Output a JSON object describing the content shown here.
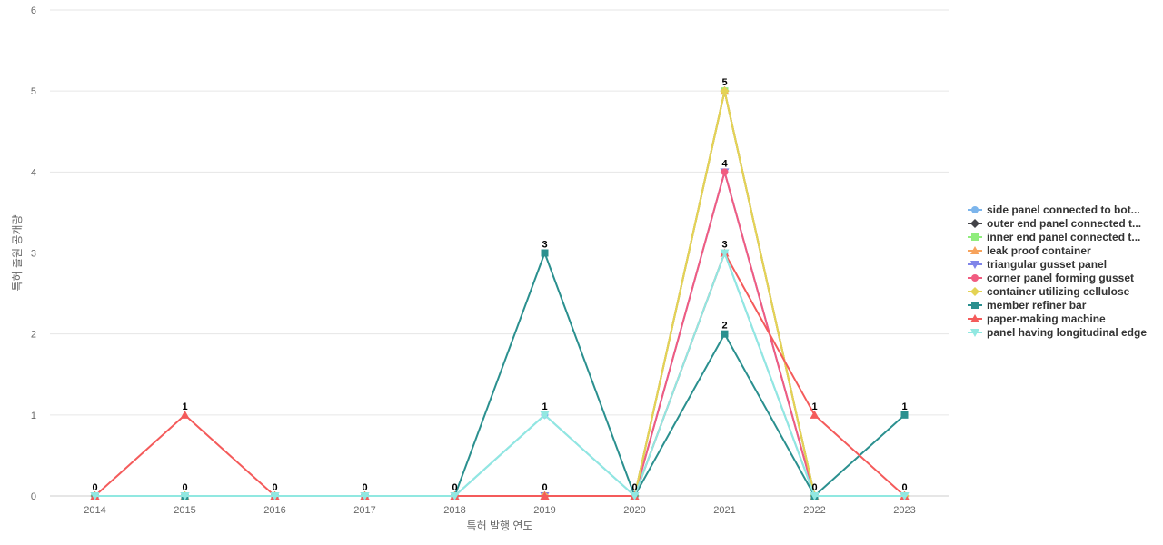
{
  "chart_data": {
    "type": "line",
    "title": "",
    "xlabel": "특허 발행 연도",
    "ylabel": "특허 출원 공개량",
    "ylim": [
      0,
      6
    ],
    "yticks": [
      0,
      1,
      2,
      3,
      4,
      5,
      6
    ],
    "grid": true,
    "legend_position": "right",
    "categories": [
      "2014",
      "2015",
      "2016",
      "2017",
      "2018",
      "2019",
      "2020",
      "2021",
      "2022",
      "2023"
    ],
    "series": [
      {
        "name": "side panel connected to bot...",
        "color": "#7cb5ec",
        "marker": "circle",
        "values": [
          0,
          0,
          0,
          0,
          0,
          1,
          0,
          3,
          0,
          0
        ]
      },
      {
        "name": "outer end panel connected t...",
        "color": "#434348",
        "marker": "diamond",
        "values": [
          0,
          0,
          0,
          0,
          0,
          0,
          0,
          5,
          0,
          0
        ]
      },
      {
        "name": "inner end panel connected t...",
        "color": "#90ed7d",
        "marker": "square",
        "values": [
          0,
          0,
          0,
          0,
          0,
          0,
          0,
          5,
          0,
          0
        ]
      },
      {
        "name": "leak proof container",
        "color": "#f7a35c",
        "marker": "triangle",
        "values": [
          0,
          0,
          0,
          0,
          0,
          0,
          0,
          5,
          0,
          0
        ]
      },
      {
        "name": "triangular gusset panel",
        "color": "#8085e9",
        "marker": "triangle-down",
        "values": [
          0,
          0,
          0,
          0,
          0,
          0,
          0,
          4,
          0,
          0
        ]
      },
      {
        "name": "corner panel forming gusset",
        "color": "#f15c80",
        "marker": "circle",
        "values": [
          0,
          0,
          0,
          0,
          0,
          0,
          0,
          4,
          0,
          0
        ]
      },
      {
        "name": "container utilizing cellulose",
        "color": "#e4d354",
        "marker": "diamond",
        "values": [
          0,
          0,
          0,
          0,
          0,
          0,
          0,
          5,
          0,
          0
        ]
      },
      {
        "name": "member refiner bar",
        "color": "#2b908f",
        "marker": "square",
        "values": [
          0,
          0,
          0,
          0,
          0,
          3,
          0,
          2,
          0,
          1
        ]
      },
      {
        "name": "paper-making machine",
        "color": "#f45b5b",
        "marker": "triangle",
        "values": [
          0,
          1,
          0,
          0,
          0,
          0,
          0,
          3,
          1,
          0
        ]
      },
      {
        "name": "panel having longitudinal edge",
        "color": "#91e8e1",
        "marker": "triangle-down",
        "values": [
          0,
          0,
          0,
          0,
          0,
          1,
          0,
          3,
          0,
          0
        ]
      }
    ],
    "data_labels": [
      {
        "x": "2014",
        "value": 0
      },
      {
        "x": "2015",
        "value": 1
      },
      {
        "x": "2015",
        "value": 0
      },
      {
        "x": "2016",
        "value": 0
      },
      {
        "x": "2017",
        "value": 0
      },
      {
        "x": "2018",
        "value": 0
      },
      {
        "x": "2019",
        "value": 3
      },
      {
        "x": "2019",
        "value": 1
      },
      {
        "x": "2019",
        "value": 0
      },
      {
        "x": "2020",
        "value": 0
      },
      {
        "x": "2021",
        "value": 5
      },
      {
        "x": "2021",
        "value": 4
      },
      {
        "x": "2021",
        "value": 3
      },
      {
        "x": "2021",
        "value": 2
      },
      {
        "x": "2022",
        "value": 1
      },
      {
        "x": "2022",
        "value": 0
      },
      {
        "x": "2023",
        "value": 1
      },
      {
        "x": "2023",
        "value": 0
      }
    ]
  }
}
